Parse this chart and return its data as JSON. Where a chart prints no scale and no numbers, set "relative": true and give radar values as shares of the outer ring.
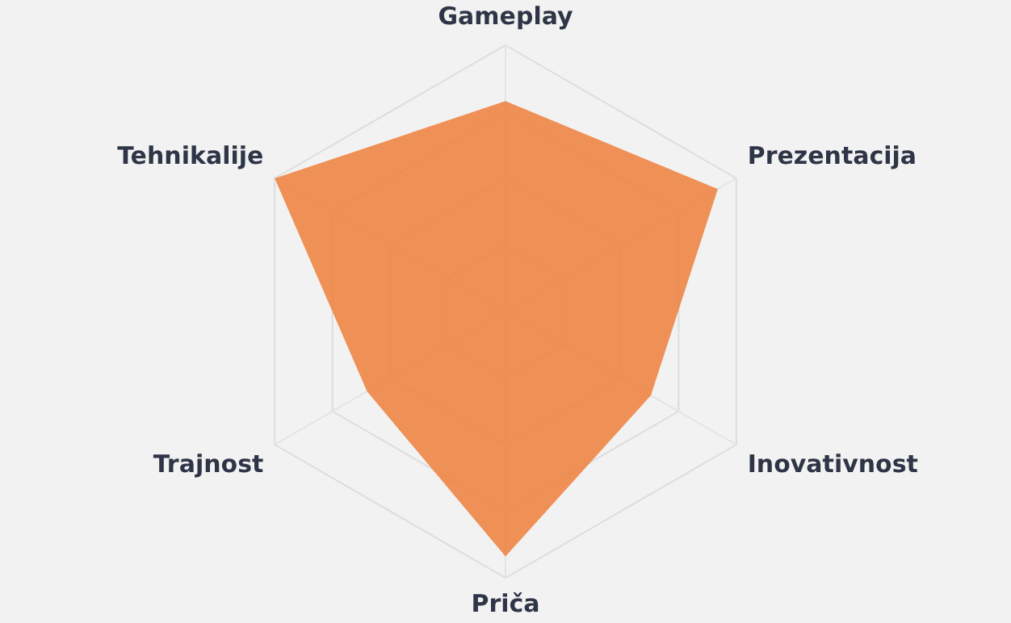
{
  "chart_data": {
    "type": "radar",
    "relative": true,
    "categories": [
      "Gameplay",
      "Prezentacija",
      "Inovativnost",
      "Priča",
      "Trajnost",
      "Tehnikalije"
    ],
    "series": [
      {
        "color": "#ef7f3c",
        "values": [
          0.79,
          0.92,
          0.63,
          0.92,
          0.6,
          1
        ]
      }
    ],
    "legend": false,
    "grid": true,
    "marker": "none"
  }
}
